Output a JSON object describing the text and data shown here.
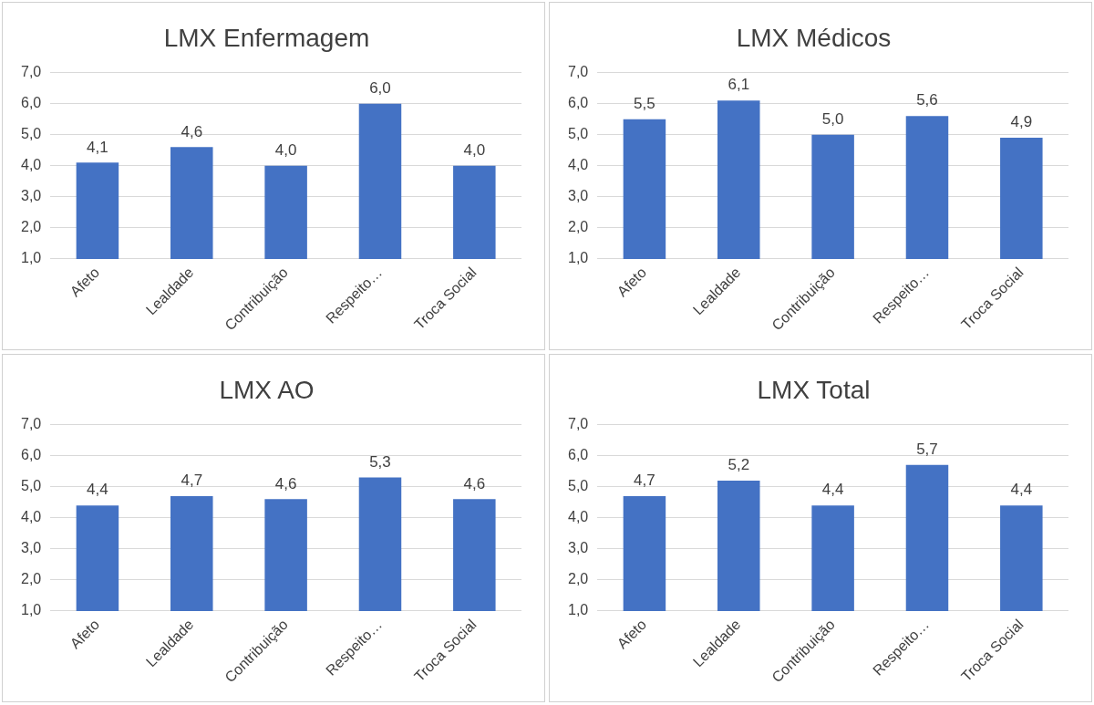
{
  "chart_data": [
    {
      "type": "bar",
      "title": "LMX Enfermagem",
      "categories": [
        "Afeto",
        "Lealdade",
        "Contribuição",
        "Respeito…",
        "Troca Social"
      ],
      "values": [
        4.1,
        4.6,
        4.0,
        6.0,
        4.0
      ],
      "value_labels": [
        "4,1",
        "4,6",
        "4,0",
        "6,0",
        "4,0"
      ],
      "color": "#4472c4",
      "ylim": [
        1,
        7
      ],
      "yticks": [
        {
          "value": 1,
          "label": "1,0"
        },
        {
          "value": 2,
          "label": "2,0"
        },
        {
          "value": 3,
          "label": "3,0"
        },
        {
          "value": 4,
          "label": "4,0"
        },
        {
          "value": 5,
          "label": "5,0"
        },
        {
          "value": 6,
          "label": "6,0"
        },
        {
          "value": 7,
          "label": "7,0"
        }
      ],
      "grid": "y"
    },
    {
      "type": "bar",
      "title": "LMX Médicos",
      "categories": [
        "Afeto",
        "Lealdade",
        "Contribuição",
        "Respeito…",
        "Troca Social"
      ],
      "values": [
        5.5,
        6.1,
        5.0,
        5.6,
        4.9
      ],
      "value_labels": [
        "5,5",
        "6,1",
        "5,0",
        "5,6",
        "4,9"
      ],
      "color": "#4472c4",
      "ylim": [
        1,
        7
      ],
      "yticks": [
        {
          "value": 1,
          "label": "1,0"
        },
        {
          "value": 2,
          "label": "2,0"
        },
        {
          "value": 3,
          "label": "3,0"
        },
        {
          "value": 4,
          "label": "4,0"
        },
        {
          "value": 5,
          "label": "5,0"
        },
        {
          "value": 6,
          "label": "6,0"
        },
        {
          "value": 7,
          "label": "7,0"
        }
      ],
      "grid": "y"
    },
    {
      "type": "bar",
      "title": "LMX AO",
      "categories": [
        "Afeto",
        "Lealdade",
        "Contribuição",
        "Respeito…",
        "Troca Social"
      ],
      "values": [
        4.4,
        4.7,
        4.6,
        5.3,
        4.6
      ],
      "value_labels": [
        "4,4",
        "4,7",
        "4,6",
        "5,3",
        "4,6"
      ],
      "color": "#4472c4",
      "ylim": [
        1,
        7
      ],
      "yticks": [
        {
          "value": 1,
          "label": "1,0"
        },
        {
          "value": 2,
          "label": "2,0"
        },
        {
          "value": 3,
          "label": "3,0"
        },
        {
          "value": 4,
          "label": "4,0"
        },
        {
          "value": 5,
          "label": "5,0"
        },
        {
          "value": 6,
          "label": "6,0"
        },
        {
          "value": 7,
          "label": "7,0"
        }
      ],
      "grid": "y"
    },
    {
      "type": "bar",
      "title": "LMX Total",
      "categories": [
        "Afeto",
        "Lealdade",
        "Contribuição",
        "Respeito…",
        "Troca Social"
      ],
      "values": [
        4.7,
        5.2,
        4.4,
        5.7,
        4.4
      ],
      "value_labels": [
        "4,7",
        "5,2",
        "4,4",
        "5,7",
        "4,4"
      ],
      "color": "#4472c4",
      "ylim": [
        1,
        7
      ],
      "yticks": [
        {
          "value": 1,
          "label": "1,0"
        },
        {
          "value": 2,
          "label": "2,0"
        },
        {
          "value": 3,
          "label": "3,0"
        },
        {
          "value": 4,
          "label": "4,0"
        },
        {
          "value": 5,
          "label": "5,0"
        },
        {
          "value": 6,
          "label": "6,0"
        },
        {
          "value": 7,
          "label": "7,0"
        }
      ],
      "grid": "y"
    }
  ]
}
